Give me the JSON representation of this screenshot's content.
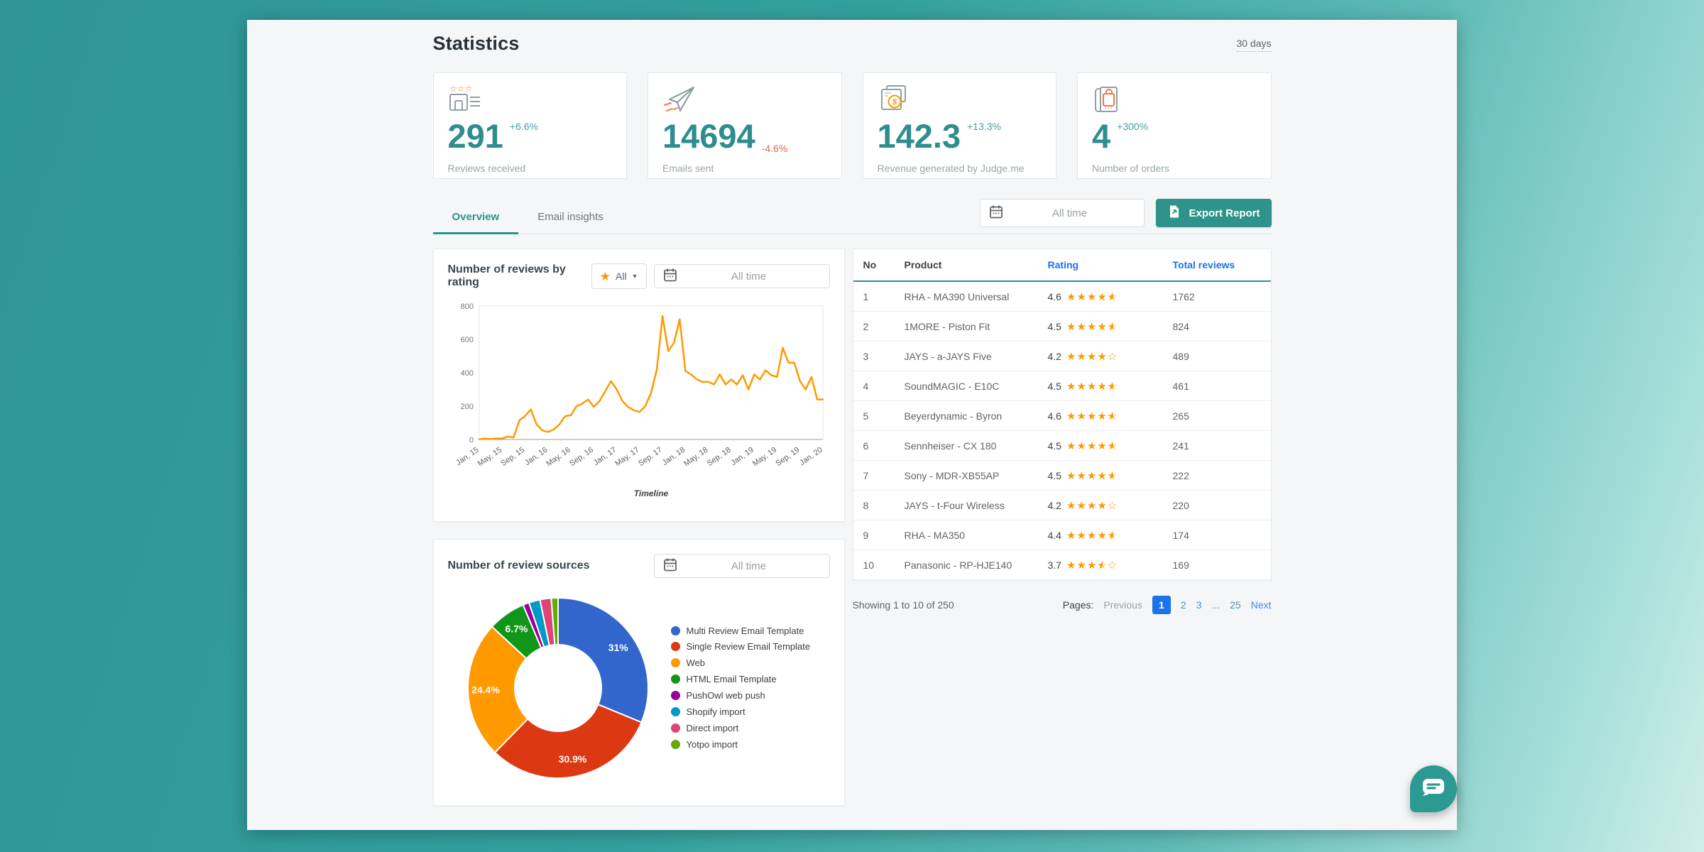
{
  "page": {
    "title": "Statistics",
    "period_badge": "30 days"
  },
  "stats": [
    {
      "icon": "reviews-icon",
      "value": "291",
      "delta": "+6.6%",
      "trend": "up",
      "label": "Reviews received"
    },
    {
      "icon": "paper-plane-icon",
      "value": "14694",
      "delta": "-4.6%",
      "trend": "down",
      "label": "Emails sent"
    },
    {
      "icon": "revenue-icon",
      "value": "142.3",
      "delta": "+13.3%",
      "trend": "up",
      "label": "Revenue generated by Judge.me"
    },
    {
      "icon": "orders-icon",
      "value": "4",
      "delta": "+300%",
      "trend": "up",
      "label": "Number of orders"
    }
  ],
  "tabs": [
    {
      "label": "Overview",
      "active": true
    },
    {
      "label": "Email insights",
      "active": false
    }
  ],
  "toolbar": {
    "date_range": "All time",
    "export_label": "Export Report"
  },
  "reviews_chart": {
    "title": "Number of reviews by rating",
    "star_filter_value": "All",
    "date_range": "All time"
  },
  "sources_chart": {
    "title": "Number of review sources",
    "date_range": "All time"
  },
  "chart_data": [
    {
      "type": "line",
      "title": "Number of reviews by rating",
      "xlabel": "Timeline",
      "ylabel": "",
      "ylim": [
        0,
        800
      ],
      "y_ticks": [
        0,
        200,
        400,
        600,
        800
      ],
      "x_tick_labels": [
        "Jan, 15",
        "May, 15",
        "Sep, 15",
        "Jan, 16",
        "May, 16",
        "Sep, 16",
        "Jan, 17",
        "May, 17",
        "Sep, 17",
        "Jan, 18",
        "May, 18",
        "Sep, 18",
        "Jan, 19",
        "May, 19",
        "Sep, 19",
        "Jan, 20"
      ],
      "x_tick_every": 4,
      "grid": false,
      "legend": "none",
      "series": [
        {
          "name": "Reviews",
          "color": "#ff9900",
          "values": [
            2,
            5,
            3,
            6,
            5,
            18,
            12,
            115,
            140,
            180,
            90,
            55,
            45,
            60,
            90,
            140,
            145,
            200,
            215,
            240,
            195,
            230,
            290,
            350,
            300,
            230,
            195,
            175,
            165,
            200,
            280,
            420,
            740,
            530,
            580,
            720,
            410,
            390,
            360,
            345,
            345,
            330,
            390,
            330,
            360,
            330,
            385,
            300,
            390,
            360,
            415,
            385,
            375,
            550,
            460,
            460,
            350,
            300,
            375,
            240,
            240
          ]
        }
      ]
    },
    {
      "type": "pie",
      "title": "Number of review sources",
      "donut_hole": 0.48,
      "legend_position": "right",
      "labels": [
        "Multi Review Email Template",
        "Single Review Email Template",
        "Web",
        "HTML Email Template",
        "PushOwl web push",
        "Shopify import",
        "Direct import",
        "Yotpo import"
      ],
      "values": [
        31,
        30.9,
        24.4,
        6.7,
        1.1,
        2.0,
        2.0,
        1.2
      ],
      "slice_labels": [
        "31%",
        "30.9%",
        "24.4%",
        "6.7%",
        "",
        "",
        "",
        ""
      ],
      "colors": [
        "#3366cc",
        "#dc3912",
        "#ff9900",
        "#109618",
        "#990099",
        "#0099c6",
        "#dd4477",
        "#66aa00"
      ]
    }
  ],
  "table": {
    "columns": [
      "No",
      "Product",
      "Rating",
      "Total reviews"
    ],
    "rows": [
      {
        "no": "1",
        "product": "RHA - MA390 Universal",
        "rating": "4.6",
        "total_reviews": "1762"
      },
      {
        "no": "2",
        "product": "1MORE - Piston Fit",
        "rating": "4.5",
        "total_reviews": "824"
      },
      {
        "no": "3",
        "product": "JAYS - a-JAYS Five",
        "rating": "4.2",
        "total_reviews": "489"
      },
      {
        "no": "4",
        "product": "SoundMAGIC - E10C",
        "rating": "4.5",
        "total_reviews": "461"
      },
      {
        "no": "5",
        "product": "Beyerdynamic - Byron",
        "rating": "4.6",
        "total_reviews": "265"
      },
      {
        "no": "6",
        "product": "Sennheiser - CX 180",
        "rating": "4.5",
        "total_reviews": "241"
      },
      {
        "no": "7",
        "product": "Sony - MDR-XB55AP",
        "rating": "4.5",
        "total_reviews": "222"
      },
      {
        "no": "8",
        "product": "JAYS - t-Four Wireless",
        "rating": "4.2",
        "total_reviews": "220"
      },
      {
        "no": "9",
        "product": "RHA - MA350",
        "rating": "4.4",
        "total_reviews": "174"
      },
      {
        "no": "10",
        "product": "Panasonic - RP-HJE140",
        "rating": "3.7",
        "total_reviews": "169"
      }
    ]
  },
  "pagination": {
    "summary": "Showing 1 to 10 of 250",
    "label": "Pages:",
    "previous": "Previous",
    "pages": [
      "1",
      "2",
      "3",
      "...",
      "25"
    ],
    "active_page": "1",
    "next": "Next"
  },
  "colors": {
    "accent_teal": "#2e938a",
    "stat_value_teal": "#2e8d8d",
    "positive_delta": "#45a3a0",
    "negative_delta": "#e0694b",
    "line_orange": "#ff9900",
    "link_blue": "#1a73e8",
    "active_page_blue": "#1a73e8",
    "star_orange": "#ff9800",
    "pie_palette": [
      "#3366cc",
      "#dc3912",
      "#ff9900",
      "#109618",
      "#990099",
      "#0099c6",
      "#dd4477",
      "#66aa00"
    ]
  }
}
